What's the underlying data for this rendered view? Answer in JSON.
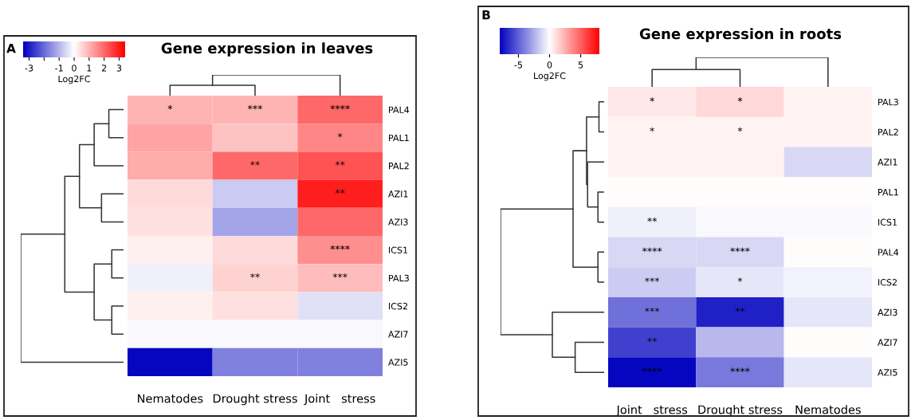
{
  "chart_data": [
    {
      "type": "heatmap",
      "title": "Gene expression in leaves",
      "annotations": [
        "A"
      ],
      "clabel": "Log2FC",
      "categories": [
        "Nematodes",
        "Drought stress",
        "Joint   stress"
      ],
      "y_categories": [
        "PAL4",
        "PAL1",
        "PAL2",
        "AZI1",
        "AZI3",
        "ICS1",
        "PAL3",
        "ICS2",
        "AZI7",
        "AZI5"
      ],
      "cells": [
        [
          1.0,
          1.0,
          2.0
        ],
        [
          1.2,
          0.8,
          1.6
        ],
        [
          1.1,
          2.0,
          2.3
        ],
        [
          0.5,
          -0.7,
          3.0
        ],
        [
          0.4,
          -1.2,
          2.0
        ],
        [
          0.2,
          0.5,
          1.5
        ],
        [
          -0.2,
          0.6,
          0.9
        ],
        [
          0.2,
          0.4,
          -0.4
        ],
        [
          -0.1,
          -0.1,
          -0.1
        ],
        [
          -3.3,
          -1.7,
          -1.7
        ]
      ],
      "cell_labels": [
        [
          "*",
          "***",
          "****"
        ],
        [
          null,
          null,
          "*"
        ],
        [
          null,
          "**",
          "**"
        ],
        [
          null,
          null,
          "**"
        ],
        [
          null,
          null,
          null
        ],
        [
          null,
          null,
          "****"
        ],
        [
          null,
          "**",
          "***"
        ],
        [
          null,
          null,
          null
        ],
        [
          null,
          null,
          null
        ],
        [
          null,
          null,
          null
        ]
      ],
      "colors": [
        "#0000bf",
        "#ffffff",
        "#ff0000"
      ],
      "clim": [
        -3.4,
        3.4
      ],
      "cticks": [
        -3,
        {
          "value": -2,
          "label": null
        },
        -1,
        0,
        1,
        2,
        3
      ]
    },
    {
      "type": "heatmap",
      "title": "Gene expression in roots",
      "annotations": [
        "B"
      ],
      "clabel": "Log2FC",
      "categories": [
        "Joint   stress",
        "Drought stress",
        "Nematodes"
      ],
      "y_categories": [
        "PAL3",
        "PAL2",
        "AZI1",
        "PAL1",
        "ICS1",
        "PAL4",
        "ICS2",
        "AZI3",
        "AZI7",
        "AZI5"
      ],
      "cells": [
        [
          0.7,
          1.2,
          0.4
        ],
        [
          0.4,
          0.4,
          0.4
        ],
        [
          0.4,
          0.4,
          -1.2
        ],
        [
          0.1,
          0.1,
          0.1
        ],
        [
          -0.5,
          -0.2,
          -0.2
        ],
        [
          -1.2,
          -1.2,
          0.1
        ],
        [
          -1.6,
          -0.8,
          -0.4
        ],
        [
          -4.5,
          -7.0,
          -0.8
        ],
        [
          -6.0,
          -2.2,
          0.1
        ],
        [
          -7.8,
          -4.2,
          -0.8
        ]
      ],
      "cell_labels": [
        [
          "*",
          "*",
          null
        ],
        [
          "*",
          "*",
          null
        ],
        [
          null,
          null,
          null
        ],
        [
          null,
          null,
          null
        ],
        [
          "**",
          null,
          null
        ],
        [
          "****",
          "****",
          null
        ],
        [
          "***",
          "*",
          null
        ],
        [
          "***",
          "**",
          null
        ],
        [
          "**",
          null,
          null
        ],
        [
          "****",
          "****",
          null
        ]
      ],
      "colors": [
        "#0000bf",
        "#ffffff",
        "#ff0000"
      ],
      "clim": [
        -8,
        8
      ],
      "cticks": [
        -5,
        0,
        5
      ]
    }
  ]
}
